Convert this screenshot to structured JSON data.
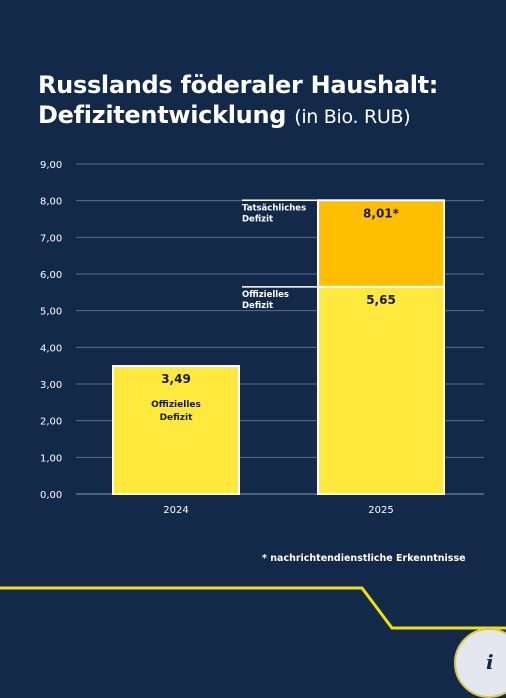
{
  "title": {
    "line1": "Russlands föderaler Haushalt:",
    "line2": "Defizitentwicklung",
    "unit": "(in Bio. RUB)"
  },
  "footnote": "* nachrichtendienstliche Erkenntnisse",
  "info_icon": "i",
  "colors": {
    "background": "#13294a",
    "official": "#ffe93d",
    "actual": "#ffbf00",
    "grid": "#5a6d8c",
    "accent_line": "#f2e000",
    "text": "#ffffff",
    "label_dark": "#1a1a1a"
  },
  "chart_data": {
    "type": "bar",
    "stacked": true,
    "categories": [
      "2024",
      "2025"
    ],
    "series": [
      {
        "name": "Offizielles Defizit",
        "values": [
          3.49,
          5.65
        ],
        "labels": [
          "3,49",
          "5,65"
        ]
      },
      {
        "name": "Tatsächliches Defizit",
        "values": [
          0,
          2.36
        ],
        "labels": [
          "",
          "8,01*"
        ]
      }
    ],
    "inside_label_2024": [
      "Offizielles",
      "Defizit"
    ],
    "side_labels": {
      "actual": [
        "Tatsächliches",
        "Defizit"
      ],
      "official": [
        "Offizielles",
        "Defizit"
      ]
    },
    "y_ticks": [
      "0,00",
      "1,00",
      "2,00",
      "3,00",
      "4,00",
      "5,00",
      "6,00",
      "7,00",
      "8,00",
      "9,00"
    ],
    "ylim": [
      0,
      9
    ],
    "grid": true,
    "xlabel": "",
    "ylabel": ""
  }
}
